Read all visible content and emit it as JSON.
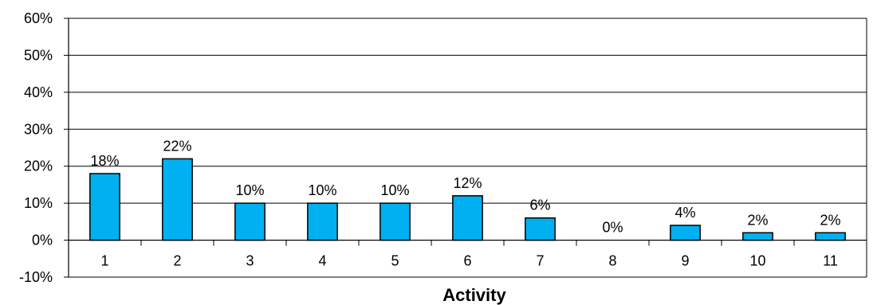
{
  "chart_data": {
    "type": "bar",
    "title": "",
    "xlabel": "Activity",
    "ylabel": "",
    "categories": [
      "1",
      "2",
      "3",
      "4",
      "5",
      "6",
      "7",
      "8",
      "9",
      "10",
      "11"
    ],
    "values": [
      18,
      22,
      10,
      10,
      10,
      12,
      6,
      0,
      4,
      2,
      2
    ],
    "data_labels": [
      "18%",
      "22%",
      "10%",
      "10%",
      "10%",
      "12%",
      "6%",
      "0%",
      "4%",
      "2%",
      "2%"
    ],
    "ylim": [
      -10,
      60
    ],
    "yticks": [
      -10,
      0,
      10,
      20,
      30,
      40,
      50,
      60
    ],
    "ytick_labels": [
      "-10%",
      "0%",
      "10%",
      "20%",
      "30%",
      "40%",
      "50%",
      "60%"
    ],
    "grid": true,
    "legend": "none",
    "colors": {
      "bar_fill": "#00b0f0",
      "bar_stroke": "#000000",
      "grid": "#000000",
      "axis": "#000000"
    }
  }
}
